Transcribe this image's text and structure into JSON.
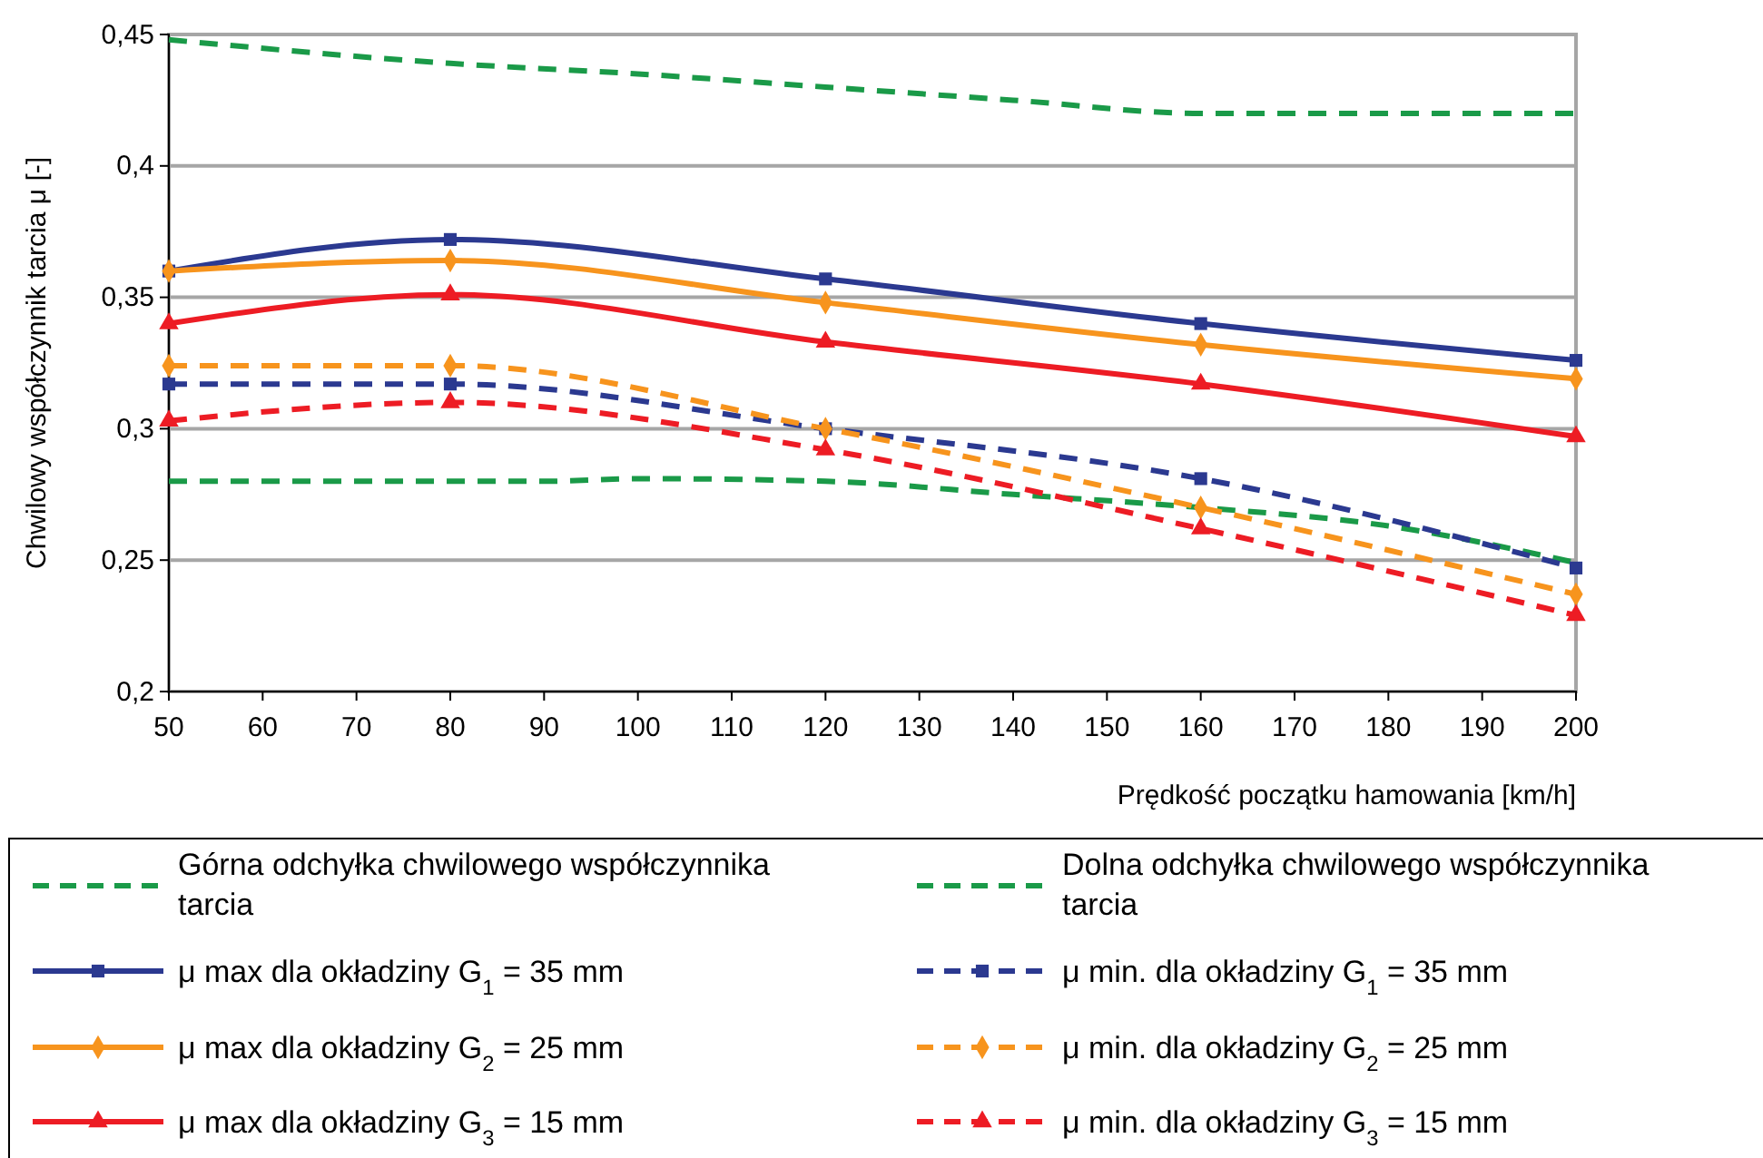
{
  "chart_data": {
    "type": "line",
    "xlabel": "Prędkość początku hamowania [km/h]",
    "ylabel": "Chwilowy współczynnik  tarcia   μ [-]",
    "xlim": [
      50,
      200
    ],
    "xticks": [
      50,
      60,
      70,
      80,
      90,
      100,
      110,
      120,
      130,
      140,
      150,
      160,
      170,
      180,
      190,
      200
    ],
    "ylim": [
      0.2,
      0.45
    ],
    "yticks": [
      {
        "value": 0.2,
        "label": "0,2"
      },
      {
        "value": 0.25,
        "label": "0,25"
      },
      {
        "value": 0.3,
        "label": "0,3"
      },
      {
        "value": 0.35,
        "label": "0,35"
      },
      {
        "value": 0.4,
        "label": "0,4"
      },
      {
        "value": 0.45,
        "label": "0,45"
      }
    ],
    "grid": "y",
    "legend": "bottom",
    "series": [
      {
        "name": "Górna odchyłka chwilowego współczynnika tarcia",
        "color": "#1a9a48",
        "line_style": "dashed",
        "marker": "none",
        "x": [
          50,
          80,
          100,
          120,
          140,
          160,
          200
        ],
        "values": [
          0.448,
          0.439,
          0.435,
          0.43,
          0.425,
          0.42,
          0.42
        ]
      },
      {
        "name": "Dolna odchyłka chwilowego współczynnika tarcia",
        "color": "#1a9a48",
        "line_style": "dashed",
        "marker": "none",
        "x": [
          50,
          90,
          100,
          120,
          140,
          160,
          180,
          200
        ],
        "values": [
          0.28,
          0.28,
          0.281,
          0.28,
          0.275,
          0.27,
          0.263,
          0.249
        ]
      },
      {
        "name": "μ max  dla okładziny G$_{1}$ = 35 mm",
        "color": "#2b3990",
        "line_style": "solid",
        "marker": "square",
        "x": [
          50,
          80,
          120,
          160,
          200
        ],
        "values": [
          0.36,
          0.372,
          0.357,
          0.34,
          0.326
        ]
      },
      {
        "name": "μ min. dla okładziny G$_{1}$ = 35 mm",
        "color": "#2b3990",
        "line_style": "dashed",
        "marker": "square",
        "x": [
          50,
          80,
          120,
          160,
          200
        ],
        "values": [
          0.317,
          0.317,
          0.3,
          0.281,
          0.247
        ]
      },
      {
        "name": "μ max  dla okładziny G$_{2}$ = 25 mm",
        "color": "#f7941d",
        "line_style": "solid",
        "marker": "diamond",
        "x": [
          50,
          80,
          120,
          160,
          200
        ],
        "values": [
          0.36,
          0.364,
          0.348,
          0.332,
          0.319
        ]
      },
      {
        "name": "μ min. dla okładziny G$_{2}$ = 25 mm",
        "color": "#f7941d",
        "line_style": "dashed",
        "marker": "diamond",
        "x": [
          50,
          80,
          120,
          160,
          200
        ],
        "values": [
          0.324,
          0.324,
          0.3,
          0.27,
          0.237
        ]
      },
      {
        "name": "μ max  dla okładziny G$_{3}$ = 15 mm",
        "color": "#ed1c24",
        "line_style": "solid",
        "marker": "triangle",
        "x": [
          50,
          80,
          120,
          160,
          200
        ],
        "values": [
          0.34,
          0.351,
          0.333,
          0.317,
          0.297
        ]
      },
      {
        "name": "μ min. dla okładziny G$_{3}$ = 15 mm",
        "color": "#ed1c24",
        "line_style": "dashed",
        "marker": "triangle",
        "x": [
          50,
          80,
          120,
          160,
          200
        ],
        "values": [
          0.303,
          0.31,
          0.292,
          0.262,
          0.229
        ]
      }
    ]
  }
}
